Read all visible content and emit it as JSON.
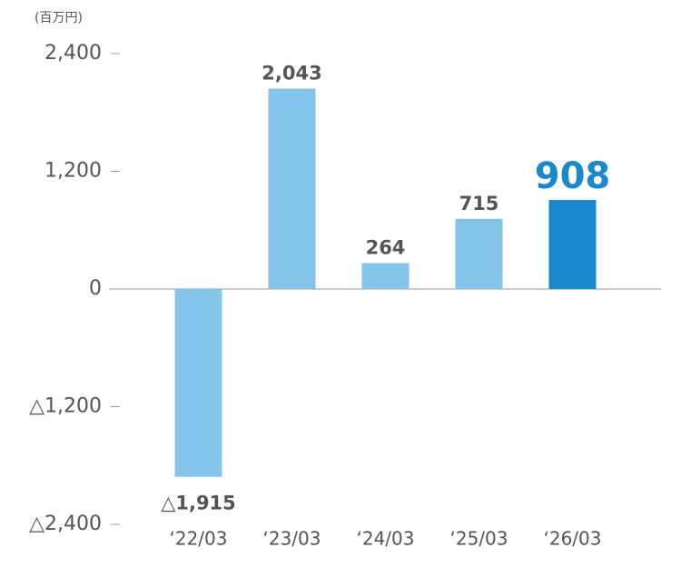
{
  "chart_data": {
    "type": "bar",
    "y_axis_label": "(百万円)",
    "categories": [
      "‘22/03",
      "‘23/03",
      "‘24/03",
      "‘25/03",
      "‘26/03"
    ],
    "values": [
      -1915,
      2043,
      264,
      715,
      908
    ],
    "value_labels": [
      "△1,915",
      "2,043",
      "264",
      "715",
      "908"
    ],
    "colors": [
      "#85c4ea",
      "#85c4ea",
      "#85c4ea",
      "#85c4ea",
      "#1a88cc"
    ],
    "label_colors": [
      "#555555",
      "#555555",
      "#555555",
      "#555555",
      "#1a88cc"
    ],
    "ylim": [
      -2400,
      2400
    ],
    "yticks": [
      {
        "value": -2400,
        "label": "△2,400"
      },
      {
        "value": -1200,
        "label": "△1,200"
      },
      0,
      {
        "value": 1200,
        "label": "1,200"
      },
      {
        "value": 2400,
        "label": "2,400"
      }
    ]
  }
}
